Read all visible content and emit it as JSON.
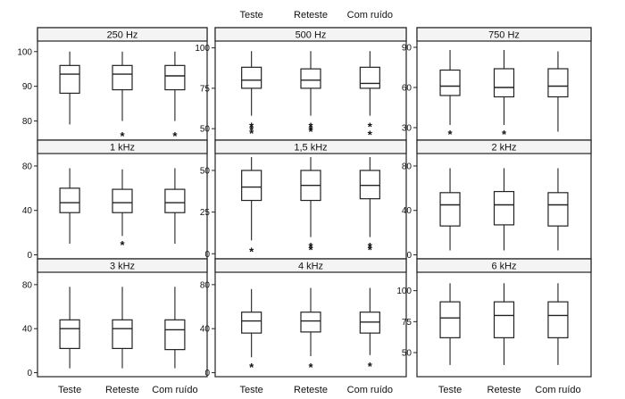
{
  "chart_data": {
    "type": "boxplot",
    "categories": [
      "Teste",
      "Reteste",
      "Com ruído"
    ],
    "panels": [
      {
        "title": "250 Hz",
        "yticks": [
          80,
          90,
          100
        ],
        "ylim": [
          75,
          102
        ],
        "boxes": [
          {
            "category": "Teste",
            "min": 79,
            "q1": 88,
            "median": 93.5,
            "q3": 96,
            "max": 100,
            "outliers": []
          },
          {
            "category": "Reteste",
            "min": 80,
            "q1": 89,
            "median": 93.5,
            "q3": 96,
            "max": 100,
            "outliers": [
              76
            ]
          },
          {
            "category": "Com ruído",
            "min": 80,
            "q1": 89,
            "median": 93,
            "q3": 96,
            "max": 100,
            "outliers": [
              76
            ]
          }
        ]
      },
      {
        "title": "500 Hz",
        "yticks": [
          50,
          75,
          100
        ],
        "ylim": [
          44,
          102
        ],
        "boxes": [
          {
            "category": "Teste",
            "min": 58,
            "q1": 75,
            "median": 80,
            "q3": 88,
            "max": 98,
            "outliers": [
              48,
              50,
              52
            ]
          },
          {
            "category": "Reteste",
            "min": 58,
            "q1": 75,
            "median": 80,
            "q3": 87,
            "max": 98,
            "outliers": [
              49,
              50,
              52
            ]
          },
          {
            "category": "Com ruído",
            "min": 58,
            "q1": 75,
            "median": 78,
            "q3": 88,
            "max": 98,
            "outliers": [
              47,
              52
            ]
          }
        ]
      },
      {
        "title": "750 Hz",
        "yticks": [
          30,
          60,
          90
        ],
        "ylim": [
          22,
          92
        ],
        "boxes": [
          {
            "category": "Teste",
            "min": 32,
            "q1": 54,
            "median": 61,
            "q3": 73,
            "max": 88,
            "outliers": [
              26
            ]
          },
          {
            "category": "Reteste",
            "min": 32,
            "q1": 53,
            "median": 60,
            "q3": 74,
            "max": 88,
            "outliers": [
              26
            ]
          },
          {
            "category": "Com ruído",
            "min": 27,
            "q1": 53,
            "median": 61,
            "q3": 74,
            "max": 87,
            "outliers": []
          }
        ]
      },
      {
        "title": "1 kHz",
        "yticks": [
          0,
          40,
          80
        ],
        "ylim": [
          -2,
          88
        ],
        "boxes": [
          {
            "category": "Teste",
            "min": 10,
            "q1": 38,
            "median": 47,
            "q3": 60,
            "max": 78,
            "outliers": []
          },
          {
            "category": "Reteste",
            "min": 17,
            "q1": 38,
            "median": 47,
            "q3": 59,
            "max": 77,
            "outliers": [
              10
            ]
          },
          {
            "category": "Com ruído",
            "min": 10,
            "q1": 38,
            "median": 47,
            "q3": 59,
            "max": 78,
            "outliers": []
          }
        ]
      },
      {
        "title": "1,5 kHz",
        "yticks": [
          0,
          25,
          50
        ],
        "ylim": [
          -2,
          58
        ],
        "boxes": [
          {
            "category": "Teste",
            "min": 8,
            "q1": 32,
            "median": 40,
            "q3": 50,
            "max": 58,
            "outliers": [
              2
            ]
          },
          {
            "category": "Reteste",
            "min": 10,
            "q1": 32,
            "median": 41,
            "q3": 50,
            "max": 58,
            "outliers": [
              3,
              5
            ]
          },
          {
            "category": "Com ruído",
            "min": 10,
            "q1": 33,
            "median": 41,
            "q3": 50,
            "max": 58,
            "outliers": [
              3,
              5
            ]
          }
        ]
      },
      {
        "title": "2 kHz",
        "yticks": [
          0,
          40,
          80
        ],
        "ylim": [
          -2,
          88
        ],
        "boxes": [
          {
            "category": "Teste",
            "min": 4,
            "q1": 26,
            "median": 45,
            "q3": 56,
            "max": 78,
            "outliers": []
          },
          {
            "category": "Reteste",
            "min": 4,
            "q1": 27,
            "median": 45,
            "q3": 57,
            "max": 78,
            "outliers": []
          },
          {
            "category": "Com ruído",
            "min": 4,
            "q1": 26,
            "median": 45,
            "q3": 56,
            "max": 78,
            "outliers": []
          }
        ]
      },
      {
        "title": "3 kHz",
        "yticks": [
          0,
          40,
          80
        ],
        "ylim": [
          -2,
          88
        ],
        "boxes": [
          {
            "category": "Teste",
            "min": 4,
            "q1": 22,
            "median": 40,
            "q3": 48,
            "max": 78,
            "outliers": []
          },
          {
            "category": "Reteste",
            "min": 4,
            "q1": 22,
            "median": 40,
            "q3": 48,
            "max": 78,
            "outliers": []
          },
          {
            "category": "Com ruído",
            "min": 4,
            "q1": 21,
            "median": 39,
            "q3": 48,
            "max": 78,
            "outliers": []
          }
        ]
      },
      {
        "title": "4 kHz",
        "yticks": [
          0,
          40,
          80
        ],
        "ylim": [
          -2,
          88
        ],
        "boxes": [
          {
            "category": "Teste",
            "min": 14,
            "q1": 36,
            "median": 47,
            "q3": 55,
            "max": 76,
            "outliers": [
              6
            ]
          },
          {
            "category": "Reteste",
            "min": 15,
            "q1": 37,
            "median": 47,
            "q3": 55,
            "max": 77,
            "outliers": [
              6
            ]
          },
          {
            "category": "Com ruído",
            "min": 16,
            "q1": 36,
            "median": 46,
            "q3": 55,
            "max": 77,
            "outliers": [
              7
            ]
          }
        ]
      },
      {
        "title": "6 kHz",
        "yticks": [
          50,
          75,
          100
        ],
        "ylim": [
          32,
          112
        ],
        "boxes": [
          {
            "category": "Teste",
            "min": 40,
            "q1": 62,
            "median": 78,
            "q3": 91,
            "max": 106,
            "outliers": []
          },
          {
            "category": "Reteste",
            "min": 40,
            "q1": 62,
            "median": 80,
            "q3": 91,
            "max": 106,
            "outliers": []
          },
          {
            "category": "Com ruído",
            "min": 40,
            "q1": 62,
            "median": 80,
            "q3": 91,
            "max": 106,
            "outliers": []
          }
        ]
      }
    ]
  }
}
